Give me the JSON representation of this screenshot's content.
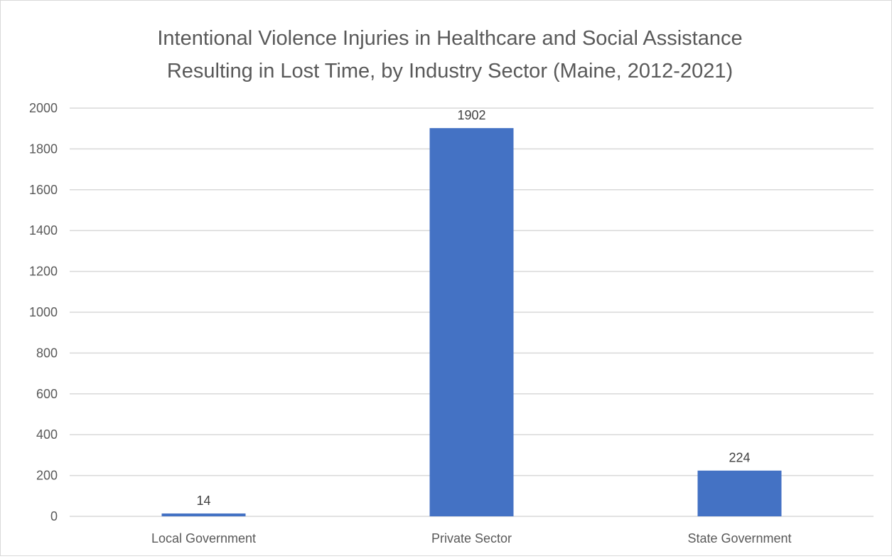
{
  "chart_data": {
    "type": "bar",
    "title_lines": [
      "Intentional Violence Injuries in Healthcare and Social Assistance",
      "Resulting in Lost Time, by Industry Sector (Maine, 2012-2021)"
    ],
    "categories": [
      "Local Government",
      "Private Sector",
      "State Government"
    ],
    "values": [
      14,
      1902,
      224
    ],
    "data_labels": [
      "14",
      "1902",
      "224"
    ],
    "y_ticks": [
      "0",
      "200",
      "400",
      "600",
      "800",
      "1000",
      "1200",
      "1400",
      "1600",
      "1800",
      "2000"
    ],
    "ylim": [
      0,
      2000
    ],
    "grid": true,
    "legend": "none",
    "bar_color": "#4472c4",
    "grid_color": "#d9d9d9"
  }
}
